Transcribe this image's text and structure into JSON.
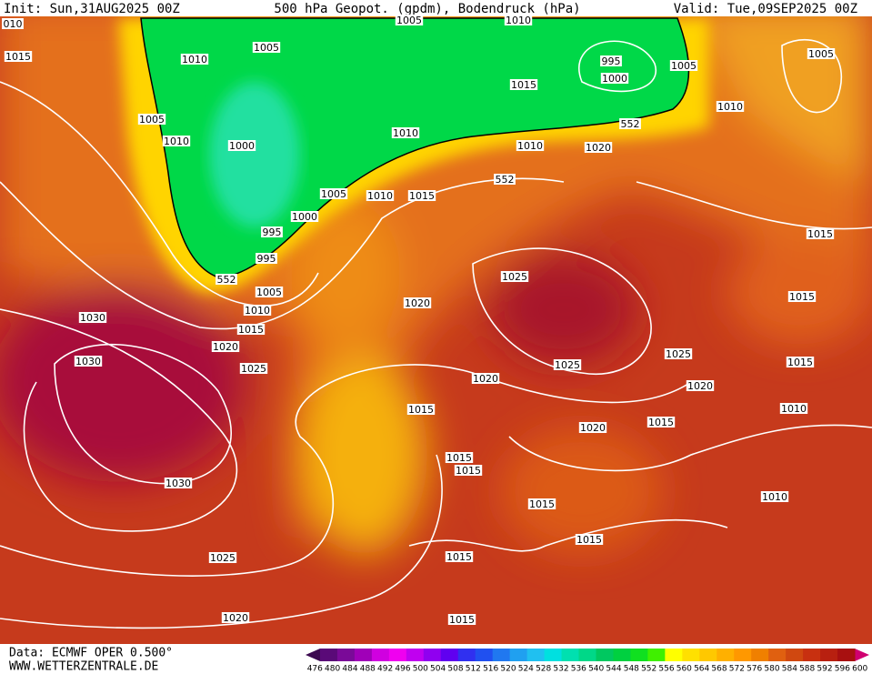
{
  "header": {
    "init": "Init: Sun,31AUG2025 00Z",
    "title": "500 hPa Geopot. (gpdm), Bodendruck (hPa)",
    "valid": "Valid: Tue,09SEP2025 00Z"
  },
  "isobar_labels": [
    "010",
    "1015",
    "1005",
    "1010",
    "1005",
    "1010",
    "995",
    "1000",
    "1005",
    "1005",
    "1015",
    "1005",
    "552",
    "1010",
    "1010",
    "1000",
    "1010",
    "1010",
    "1020",
    "552",
    "1005",
    "1010",
    "1015",
    "1000",
    "995",
    "995",
    "1015",
    "552",
    "1005",
    "1025",
    "1010",
    "1015",
    "1020",
    "1030",
    "1015",
    "1020",
    "1025",
    "1030",
    "1025",
    "1025",
    "1015",
    "1020",
    "1020",
    "1015",
    "1010",
    "1015",
    "1020",
    "1015",
    "1015",
    "1030",
    "1015",
    "1010",
    "1015",
    "1025",
    "1015",
    "1020",
    "1015"
  ],
  "colorbar": {
    "labels": [
      476,
      480,
      484,
      488,
      492,
      496,
      500,
      504,
      508,
      512,
      516,
      520,
      524,
      528,
      532,
      536,
      540,
      544,
      548,
      552,
      556,
      560,
      564,
      568,
      572,
      576,
      580,
      584,
      588,
      592,
      596,
      600
    ],
    "colors": [
      "#3c0a50",
      "#5a0a78",
      "#7a0a98",
      "#a000b8",
      "#d000e0",
      "#f000f0",
      "#c000f0",
      "#9000f0",
      "#6000f0",
      "#3030f0",
      "#2050f0",
      "#2078f0",
      "#20a0f0",
      "#20c0f0",
      "#00e0e0",
      "#00e0b0",
      "#00d888",
      "#00c860",
      "#00d040",
      "#10e020",
      "#40f000",
      "#ffff00",
      "#ffe000",
      "#ffc800",
      "#ffb000",
      "#ff9800",
      "#f08000",
      "#e06010",
      "#d04810",
      "#c83010",
      "#b82010",
      "#a81010",
      "#d00070"
    ]
  },
  "footer": {
    "source": "Data: ECMWF OPER 0.500°",
    "website": "WWW.WETTERZENTRALE.DE"
  }
}
